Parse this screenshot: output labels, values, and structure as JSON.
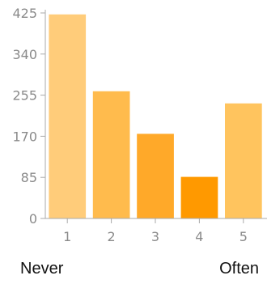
{
  "chart_data": {
    "type": "bar",
    "categories": [
      "1",
      "2",
      "3",
      "4",
      "5"
    ],
    "values": [
      422,
      263,
      175,
      86,
      238
    ],
    "bar_colors": [
      "#ffcc7a",
      "#ffbb4d",
      "#ffa929",
      "#ff9900",
      "#ffc45e"
    ],
    "ylim": [
      0,
      425
    ],
    "yticks": [
      0,
      85,
      170,
      255,
      340,
      425
    ],
    "grid": false,
    "axis_color": "#aaaaaa",
    "tick_label_color": "#8a8a8a",
    "title": "",
    "xlabel": "",
    "ylabel": ""
  },
  "scale_labels": {
    "low": "Never",
    "high": "Often"
  }
}
